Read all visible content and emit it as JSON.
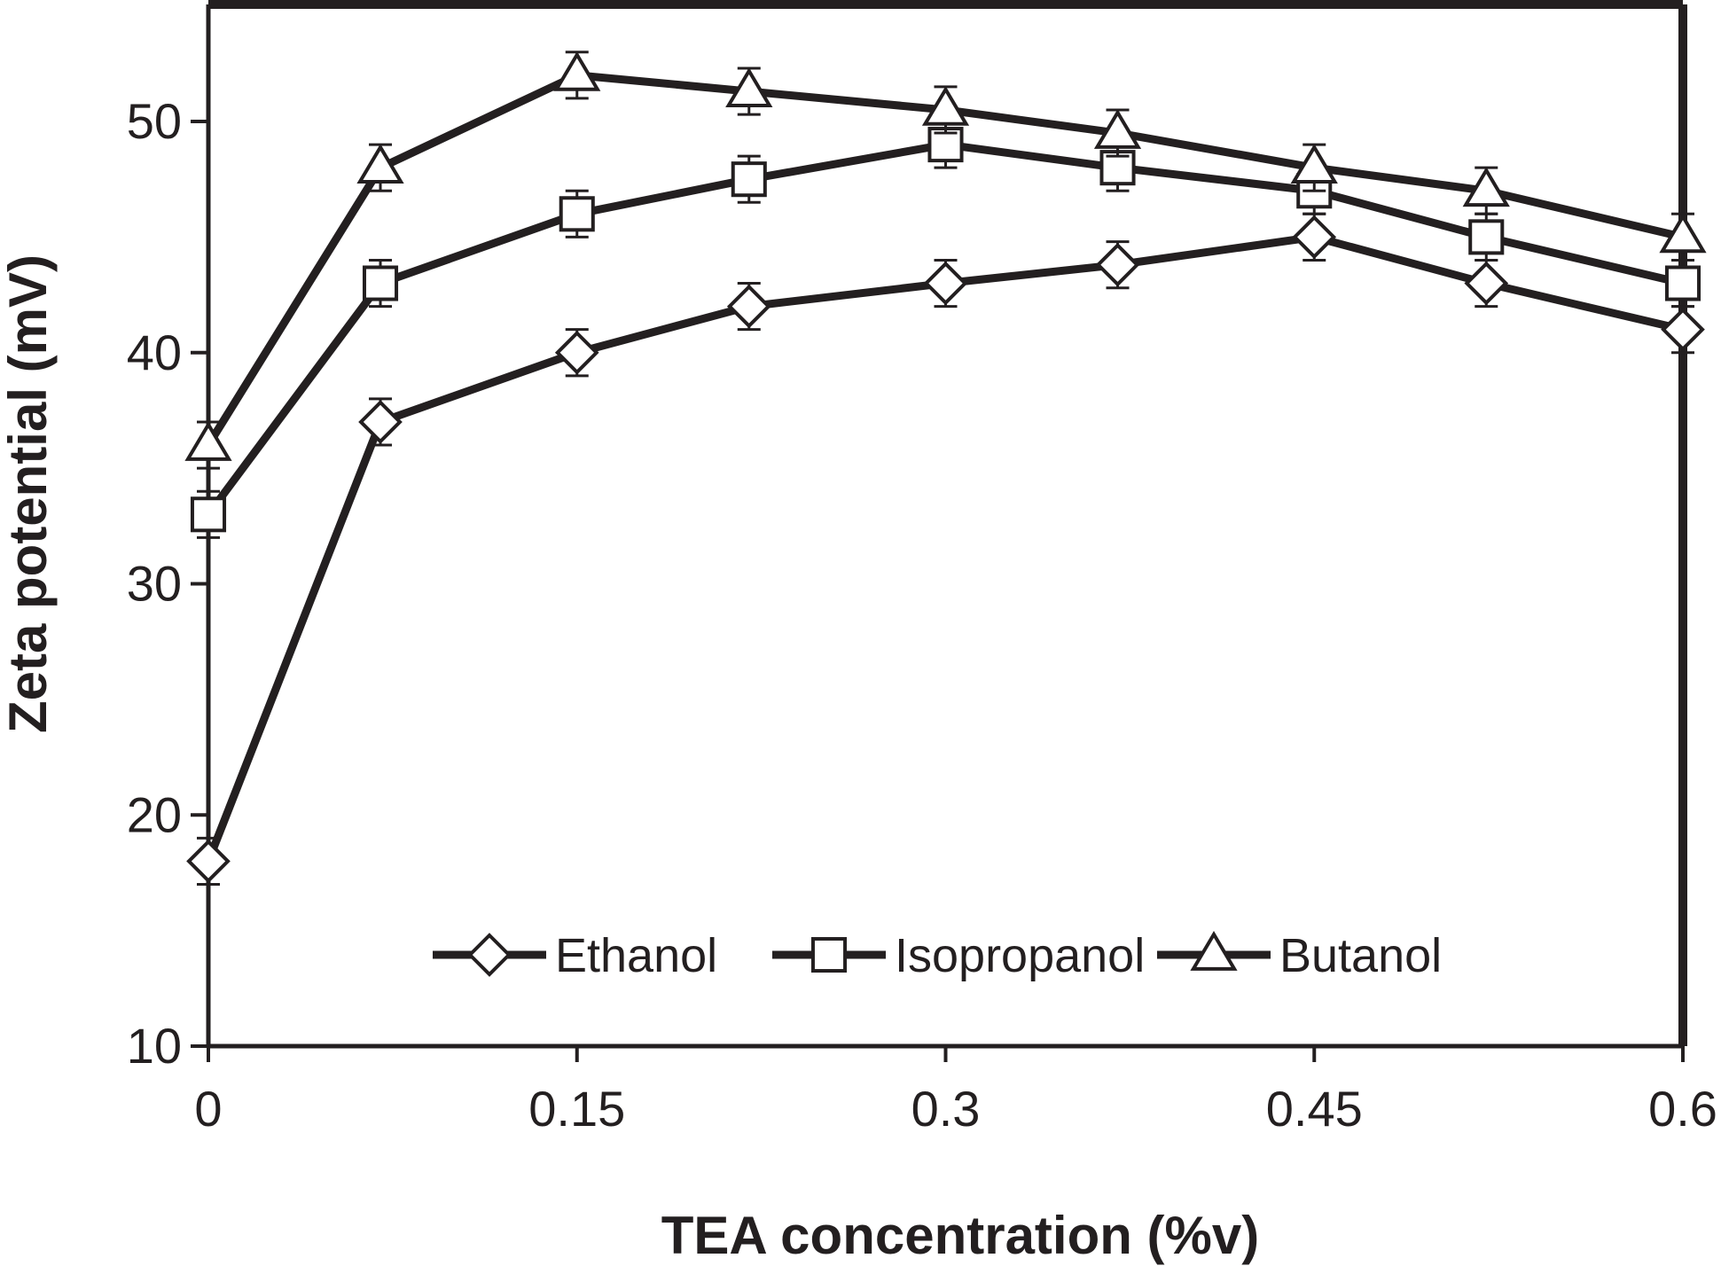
{
  "chart_data": {
    "type": "line",
    "title": "",
    "xlabel": "TEA concentration (%v)",
    "ylabel": "Zeta potential (mV)",
    "xlim": [
      0,
      0.6
    ],
    "ylim": [
      10,
      55
    ],
    "x_ticks": [
      0,
      0.15,
      0.3,
      0.45,
      0.6
    ],
    "x_tick_labels": [
      "0",
      "0.15",
      "0.3",
      "0.45",
      "0.6"
    ],
    "y_ticks": [
      10,
      20,
      30,
      40,
      50
    ],
    "y_tick_labels": [
      "10",
      "20",
      "30",
      "40",
      "50"
    ],
    "grid": false,
    "legend_position": "bottom-center",
    "x": [
      0,
      0.07,
      0.15,
      0.22,
      0.3,
      0.37,
      0.45,
      0.52,
      0.6
    ],
    "series": [
      {
        "name": "Ethanol",
        "marker": "diamond",
        "values": [
          18,
          37,
          40,
          42,
          43,
          43.8,
          45,
          43,
          41
        ],
        "errors": [
          1,
          1,
          1,
          1,
          1,
          1,
          1,
          1,
          1
        ]
      },
      {
        "name": "Isopropanol",
        "marker": "square",
        "values": [
          33,
          43,
          46,
          47.5,
          49,
          48,
          47,
          45,
          43
        ],
        "errors": [
          1,
          1,
          1,
          1,
          1,
          1,
          1,
          1,
          1
        ]
      },
      {
        "name": "Butanol",
        "marker": "triangle",
        "values": [
          36,
          48,
          52,
          51.3,
          50.5,
          49.5,
          48,
          47,
          45
        ],
        "errors": [
          1,
          1,
          1,
          1,
          1,
          1,
          1,
          1,
          1
        ]
      }
    ],
    "colors": {
      "line": "#231f20",
      "marker_fill": "#ffffff"
    }
  }
}
